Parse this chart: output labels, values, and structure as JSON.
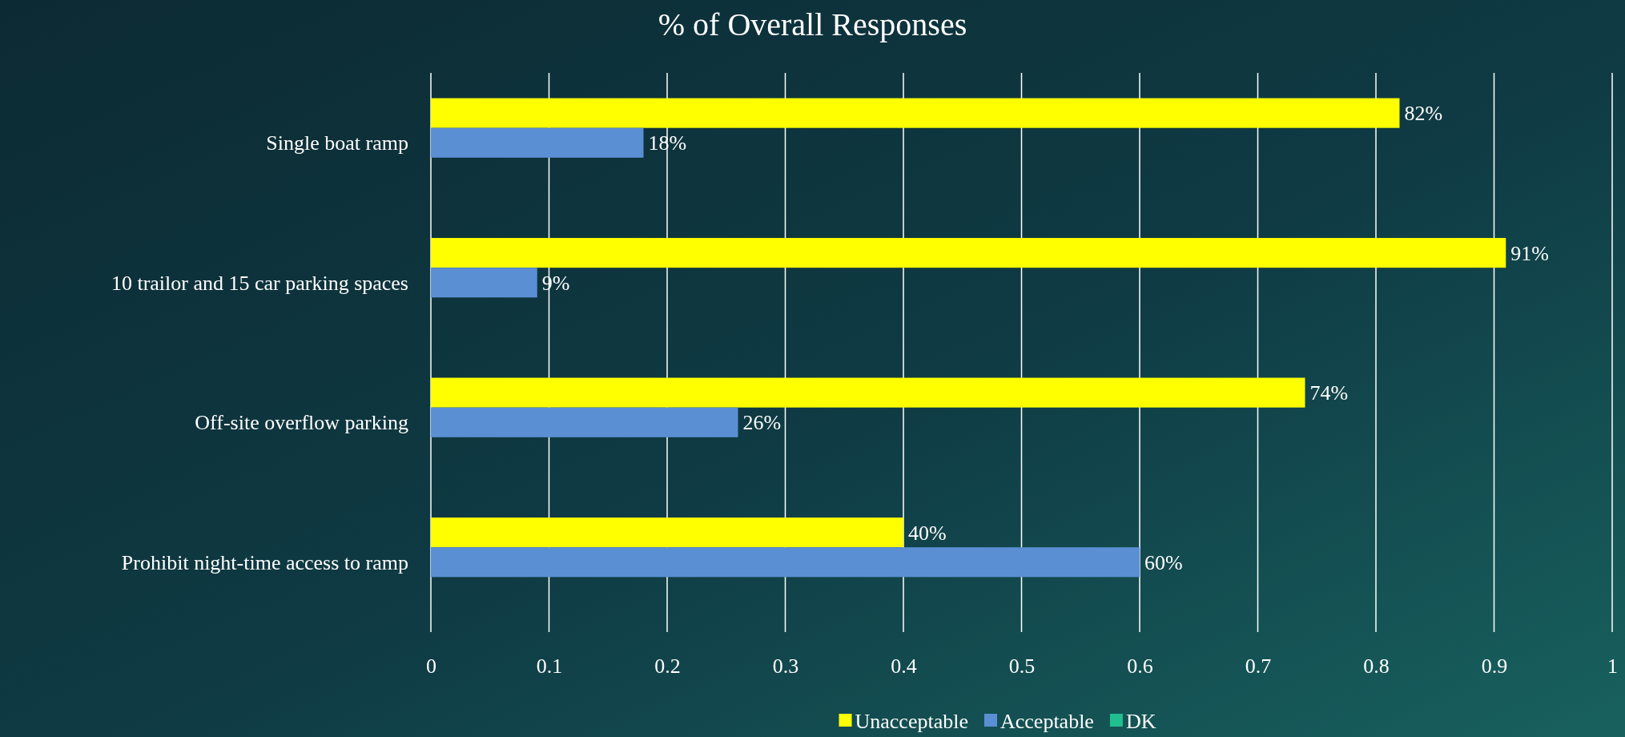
{
  "chart_data": {
    "type": "bar",
    "orientation": "horizontal",
    "title": "% of Overall Responses",
    "categories": [
      "Single boat ramp",
      "10 trailor and 15 car parking spaces",
      "Off-site overflow parking",
      "Prohibit night-time access to ramp"
    ],
    "series": [
      {
        "name": "Unacceptable",
        "color": "#ffff00",
        "values": [
          0.82,
          0.91,
          0.74,
          0.4
        ],
        "value_labels": [
          "82%",
          "91%",
          "74%",
          "40%"
        ]
      },
      {
        "name": "Acceptable",
        "color": "#5b8fd4",
        "values": [
          0.18,
          0.09,
          0.26,
          0.6
        ],
        "value_labels": [
          "18%",
          "9%",
          "26%",
          "60%"
        ]
      },
      {
        "name": "DK",
        "color": "#1fbf8f",
        "values": [
          null,
          null,
          null,
          null
        ]
      }
    ],
    "xlim": [
      0,
      1
    ],
    "xticks": [
      0,
      0.1,
      0.2,
      0.3,
      0.4,
      0.5,
      0.6,
      0.7,
      0.8,
      0.9,
      1
    ],
    "grid": "x",
    "legend": "bottom"
  }
}
